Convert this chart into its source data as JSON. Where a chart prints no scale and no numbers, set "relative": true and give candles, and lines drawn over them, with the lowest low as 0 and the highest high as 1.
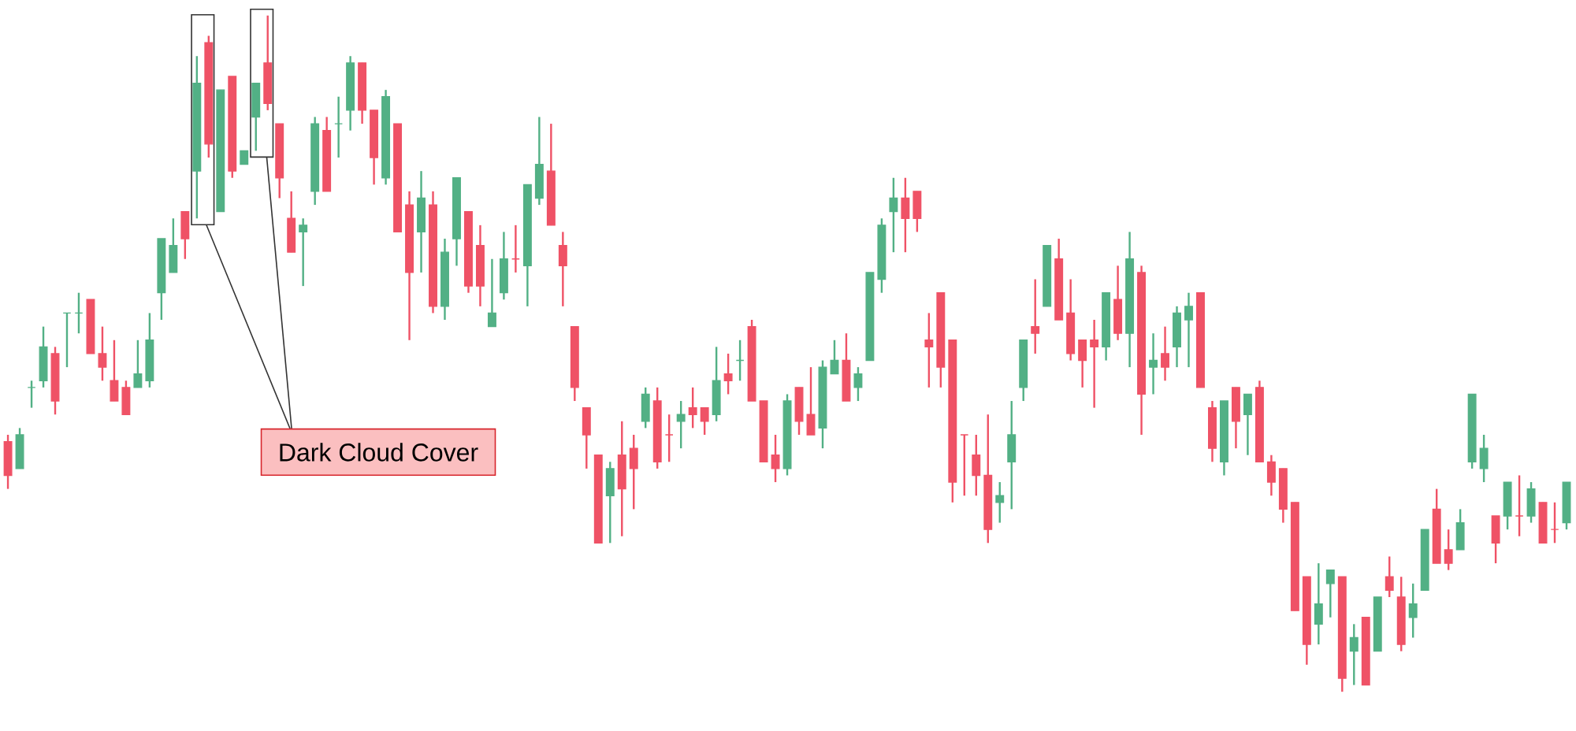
{
  "chart_data": {
    "type": "candlestick",
    "relative": true,
    "categories": [
      null,
      null,
      null,
      null,
      null,
      null,
      null,
      null,
      null,
      null,
      null,
      null,
      null,
      null,
      null,
      null,
      null,
      null,
      null,
      null,
      null,
      null,
      null,
      null,
      null,
      null,
      null,
      null,
      null,
      null,
      null,
      null,
      null,
      null,
      null,
      null,
      null,
      null,
      null,
      null,
      null,
      null,
      null,
      null,
      null,
      null,
      null,
      null,
      null,
      null,
      null,
      null,
      null,
      null,
      null,
      null,
      null,
      null,
      null,
      null,
      null,
      null,
      null,
      null,
      null,
      null,
      null,
      null,
      null,
      null,
      null,
      null,
      null,
      null,
      null,
      null,
      null,
      null,
      null,
      null,
      null,
      null,
      null,
      null,
      null,
      null,
      null,
      null,
      null,
      null,
      null,
      null,
      null,
      null,
      null,
      null,
      null,
      null,
      null,
      null,
      null,
      null,
      null,
      null,
      null,
      null,
      null,
      null,
      null,
      null,
      null,
      null,
      null,
      null,
      null,
      null,
      null,
      null,
      null,
      null,
      null,
      null,
      null,
      null,
      null,
      null,
      null,
      null,
      null,
      null,
      null,
      null,
      null
    ],
    "ohlc": [
      [
        0.37,
        0.38,
        0.3,
        0.32
      ],
      [
        0.33,
        0.39,
        0.33,
        0.38
      ],
      [
        0.45,
        0.46,
        0.42,
        0.45
      ],
      [
        0.46,
        0.54,
        0.45,
        0.51
      ],
      [
        0.5,
        0.51,
        0.41,
        0.43
      ],
      [
        0.56,
        0.56,
        0.48,
        0.56
      ],
      [
        0.56,
        0.59,
        0.53,
        0.56
      ],
      [
        0.58,
        0.58,
        0.5,
        0.5
      ],
      [
        0.5,
        0.54,
        0.46,
        0.48
      ],
      [
        0.46,
        0.52,
        0.43,
        0.43
      ],
      [
        0.45,
        0.46,
        0.41,
        0.41
      ],
      [
        0.45,
        0.52,
        0.45,
        0.47
      ],
      [
        0.46,
        0.56,
        0.45,
        0.52
      ],
      [
        0.59,
        0.67,
        0.55,
        0.67
      ],
      [
        0.62,
        0.7,
        0.62,
        0.66
      ],
      [
        0.71,
        0.71,
        0.64,
        0.67
      ],
      [
        0.77,
        0.94,
        0.7,
        0.9
      ],
      [
        0.96,
        0.97,
        0.79,
        0.81
      ],
      [
        0.71,
        0.89,
        0.71,
        0.89
      ],
      [
        0.91,
        0.91,
        0.76,
        0.77
      ],
      [
        0.78,
        0.8,
        0.78,
        0.8
      ],
      [
        0.85,
        0.9,
        0.8,
        0.9
      ],
      [
        0.93,
        1.0,
        0.86,
        0.87
      ],
      [
        0.84,
        0.84,
        0.73,
        0.76
      ],
      [
        0.7,
        0.74,
        0.65,
        0.65
      ],
      [
        0.68,
        0.7,
        0.6,
        0.69
      ],
      [
        0.74,
        0.85,
        0.72,
        0.84
      ],
      [
        0.83,
        0.85,
        0.74,
        0.74
      ],
      [
        0.84,
        0.88,
        0.79,
        0.84
      ],
      [
        0.86,
        0.94,
        0.83,
        0.93
      ],
      [
        0.93,
        0.93,
        0.84,
        0.86
      ],
      [
        0.86,
        0.86,
        0.75,
        0.79
      ],
      [
        0.76,
        0.89,
        0.75,
        0.88
      ],
      [
        0.84,
        0.84,
        0.68,
        0.68
      ],
      [
        0.72,
        0.74,
        0.52,
        0.62
      ],
      [
        0.68,
        0.77,
        0.62,
        0.73
      ],
      [
        0.72,
        0.74,
        0.56,
        0.57
      ],
      [
        0.57,
        0.67,
        0.55,
        0.65
      ],
      [
        0.67,
        0.76,
        0.63,
        0.76
      ],
      [
        0.71,
        0.71,
        0.59,
        0.6
      ],
      [
        0.66,
        0.69,
        0.57,
        0.6
      ],
      [
        0.54,
        0.64,
        0.54,
        0.56
      ],
      [
        0.59,
        0.68,
        0.58,
        0.64
      ],
      [
        0.64,
        0.69,
        0.62,
        0.64
      ],
      [
        0.63,
        0.75,
        0.57,
        0.75
      ],
      [
        0.73,
        0.85,
        0.72,
        0.78
      ],
      [
        0.77,
        0.84,
        0.69,
        0.69
      ],
      [
        0.66,
        0.68,
        0.57,
        0.63
      ],
      [
        0.54,
        0.54,
        0.43,
        0.45
      ],
      [
        0.42,
        0.42,
        0.33,
        0.38
      ],
      [
        0.35,
        0.35,
        0.22,
        0.22
      ],
      [
        0.29,
        0.34,
        0.22,
        0.33
      ],
      [
        0.35,
        0.4,
        0.23,
        0.3
      ],
      [
        0.36,
        0.38,
        0.27,
        0.33
      ],
      [
        0.4,
        0.45,
        0.39,
        0.44
      ],
      [
        0.43,
        0.45,
        0.33,
        0.34
      ],
      [
        0.38,
        0.41,
        0.34,
        0.38
      ],
      [
        0.4,
        0.43,
        0.36,
        0.41
      ],
      [
        0.42,
        0.45,
        0.39,
        0.41
      ],
      [
        0.42,
        0.42,
        0.38,
        0.4
      ],
      [
        0.41,
        0.51,
        0.4,
        0.46
      ],
      [
        0.47,
        0.5,
        0.44,
        0.46
      ],
      [
        0.49,
        0.52,
        0.46,
        0.49
      ],
      [
        0.54,
        0.55,
        0.43,
        0.43
      ],
      [
        0.43,
        0.43,
        0.34,
        0.34
      ],
      [
        0.35,
        0.38,
        0.31,
        0.33
      ],
      [
        0.33,
        0.44,
        0.32,
        0.43
      ],
      [
        0.45,
        0.45,
        0.38,
        0.4
      ],
      [
        0.41,
        0.48,
        0.38,
        0.38
      ],
      [
        0.39,
        0.49,
        0.36,
        0.48
      ],
      [
        0.47,
        0.52,
        0.47,
        0.49
      ],
      [
        0.49,
        0.53,
        0.43,
        0.43
      ],
      [
        0.45,
        0.48,
        0.43,
        0.47
      ],
      [
        0.49,
        0.62,
        0.49,
        0.62
      ],
      [
        0.61,
        0.7,
        0.59,
        0.69
      ],
      [
        0.71,
        0.76,
        0.65,
        0.73
      ],
      [
        0.73,
        0.76,
        0.65,
        0.7
      ],
      [
        0.74,
        0.74,
        0.68,
        0.7
      ],
      [
        0.52,
        0.56,
        0.45,
        0.51
      ],
      [
        0.59,
        0.59,
        0.45,
        0.48
      ],
      [
        0.52,
        0.52,
        0.28,
        0.31
      ],
      [
        0.38,
        0.38,
        0.29,
        0.38
      ],
      [
        0.35,
        0.38,
        0.29,
        0.32
      ],
      [
        0.32,
        0.41,
        0.22,
        0.24
      ],
      [
        0.28,
        0.31,
        0.25,
        0.29
      ],
      [
        0.34,
        0.43,
        0.27,
        0.38
      ],
      [
        0.45,
        0.52,
        0.43,
        0.52
      ],
      [
        0.54,
        0.61,
        0.5,
        0.53
      ],
      [
        0.57,
        0.66,
        0.57,
        0.66
      ],
      [
        0.64,
        0.67,
        0.55,
        0.55
      ],
      [
        0.56,
        0.61,
        0.49,
        0.5
      ],
      [
        0.52,
        0.52,
        0.45,
        0.49
      ],
      [
        0.52,
        0.55,
        0.42,
        0.51
      ],
      [
        0.51,
        0.59,
        0.49,
        0.59
      ],
      [
        0.58,
        0.63,
        0.52,
        0.53
      ],
      [
        0.53,
        0.68,
        0.48,
        0.64
      ],
      [
        0.62,
        0.63,
        0.38,
        0.44
      ],
      [
        0.48,
        0.53,
        0.44,
        0.49
      ],
      [
        0.5,
        0.54,
        0.46,
        0.48
      ],
      [
        0.51,
        0.57,
        0.48,
        0.56
      ],
      [
        0.55,
        0.59,
        0.48,
        0.57
      ],
      [
        0.59,
        0.59,
        0.45,
        0.45
      ],
      [
        0.42,
        0.43,
        0.34,
        0.36
      ],
      [
        0.34,
        0.43,
        0.32,
        0.43
      ],
      [
        0.45,
        0.45,
        0.36,
        0.4
      ],
      [
        0.41,
        0.44,
        0.35,
        0.44
      ],
      [
        0.45,
        0.46,
        0.34,
        0.34
      ],
      [
        0.34,
        0.35,
        0.29,
        0.31
      ],
      [
        0.33,
        0.33,
        0.25,
        0.27
      ],
      [
        0.28,
        0.28,
        0.12,
        0.12
      ],
      [
        0.17,
        0.17,
        0.04,
        0.07
      ],
      [
        0.1,
        0.19,
        0.07,
        0.13
      ],
      [
        0.16,
        0.18,
        0.11,
        0.18
      ],
      [
        0.17,
        0.17,
        0.0,
        0.02
      ],
      [
        0.06,
        0.1,
        0.01,
        0.08
      ],
      [
        0.11,
        0.11,
        0.01,
        0.01
      ],
      [
        0.06,
        0.14,
        0.06,
        0.14
      ],
      [
        0.17,
        0.2,
        0.14,
        0.15
      ],
      [
        0.14,
        0.17,
        0.06,
        0.07
      ],
      [
        0.11,
        0.16,
        0.08,
        0.13
      ],
      [
        0.15,
        0.24,
        0.15,
        0.24
      ],
      [
        0.27,
        0.3,
        0.19,
        0.19
      ],
      [
        0.21,
        0.24,
        0.18,
        0.19
      ],
      [
        0.21,
        0.27,
        0.21,
        0.25
      ],
      [
        0.34,
        0.44,
        0.33,
        0.44
      ],
      [
        0.33,
        0.38,
        0.31,
        0.36
      ],
      [
        0.26,
        0.26,
        0.19,
        0.22
      ],
      [
        0.26,
        0.31,
        0.24,
        0.31
      ],
      [
        0.26,
        0.32,
        0.23,
        0.26
      ],
      [
        0.26,
        0.31,
        0.25,
        0.3
      ],
      [
        0.28,
        0.28,
        0.22,
        0.22
      ],
      [
        0.24,
        0.28,
        0.22,
        0.24
      ],
      [
        0.25,
        0.31,
        0.24,
        0.31
      ]
    ],
    "colors": [
      "#ef5266",
      "#52b085",
      "#52b085",
      "#52b085",
      "#ef5266",
      "#52b085",
      "#52b085",
      "#ef5266",
      "#ef5266",
      "#ef5266",
      "#ef5266",
      "#52b085",
      "#52b085",
      "#52b085",
      "#52b085",
      "#ef5266",
      "#52b085",
      "#ef5266",
      "#52b085",
      "#ef5266",
      "#52b085",
      "#52b085",
      "#ef5266",
      "#ef5266",
      "#ef5266",
      "#52b085",
      "#52b085",
      "#ef5266",
      "#52b085",
      "#52b085",
      "#ef5266",
      "#ef5266",
      "#52b085",
      "#ef5266",
      "#ef5266",
      "#52b085",
      "#ef5266",
      "#52b085",
      "#52b085",
      "#ef5266",
      "#ef5266",
      "#52b085",
      "#52b085",
      "#ef5266",
      "#52b085",
      "#52b085",
      "#ef5266",
      "#ef5266",
      "#ef5266",
      "#ef5266",
      "#ef5266",
      "#52b085",
      "#ef5266",
      "#ef5266",
      "#52b085",
      "#ef5266",
      "#ef5266",
      "#52b085",
      "#ef5266",
      "#ef5266",
      "#52b085",
      "#ef5266",
      "#52b085",
      "#ef5266",
      "#ef5266",
      "#ef5266",
      "#52b085",
      "#ef5266",
      "#ef5266",
      "#52b085",
      "#52b085",
      "#ef5266",
      "#52b085",
      "#52b085",
      "#52b085",
      "#52b085",
      "#ef5266",
      "#ef5266",
      "#ef5266",
      "#ef5266",
      "#ef5266",
      "#ef5266",
      "#ef5266",
      "#ef5266",
      "#52b085",
      "#52b085",
      "#52b085",
      "#ef5266",
      "#52b085",
      "#ef5266",
      "#ef5266",
      "#ef5266",
      "#ef5266",
      "#52b085",
      "#ef5266",
      "#52b085",
      "#ef5266",
      "#52b085",
      "#ef5266",
      "#52b085",
      "#52b085",
      "#ef5266",
      "#ef5266",
      "#52b085",
      "#ef5266",
      "#52b085",
      "#ef5266",
      "#ef5266",
      "#ef5266",
      "#ef5266",
      "#ef5266",
      "#52b085",
      "#52b085",
      "#ef5266",
      "#52b085",
      "#ef5266",
      "#52b085",
      "#ef5266",
      "#ef5266",
      "#52b085",
      "#52b085",
      "#ef5266",
      "#ef5266",
      "#52b085",
      "#52b085",
      "#52b085",
      "#ef5266",
      "#52b085",
      "#ef5266",
      "#52b085",
      "#ef5266",
      "#ef5266",
      "#52b085"
    ],
    "annotations": [
      "Dark Cloud Cover"
    ]
  }
}
